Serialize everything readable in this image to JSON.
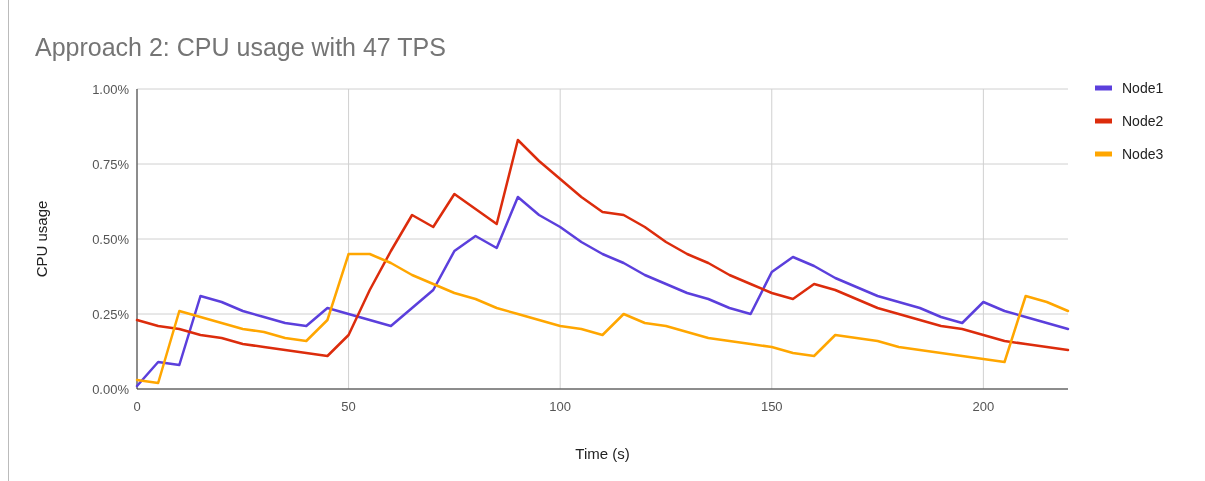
{
  "chart_data": {
    "type": "line",
    "title": "Approach 2: CPU usage with 47 TPS",
    "xlabel": "Time (s)",
    "ylabel": "CPU usage",
    "x": [
      0,
      5,
      10,
      15,
      20,
      25,
      30,
      35,
      40,
      45,
      50,
      55,
      60,
      65,
      70,
      75,
      80,
      85,
      90,
      95,
      100,
      105,
      110,
      115,
      120,
      125,
      130,
      135,
      140,
      145,
      150,
      155,
      160,
      165,
      170,
      175,
      180,
      185,
      190,
      195,
      200,
      205,
      210,
      215,
      220
    ],
    "series": [
      {
        "name": "Node1",
        "color": "#5b3fdc",
        "values": [
          0.01,
          0.09,
          0.08,
          0.31,
          0.29,
          0.26,
          0.24,
          0.22,
          0.21,
          0.27,
          0.25,
          0.23,
          0.21,
          0.27,
          0.33,
          0.46,
          0.51,
          0.47,
          0.64,
          0.58,
          0.54,
          0.49,
          0.45,
          0.42,
          0.38,
          0.35,
          0.32,
          0.3,
          0.27,
          0.25,
          0.39,
          0.44,
          0.41,
          0.37,
          0.34,
          0.31,
          0.29,
          0.27,
          0.24,
          0.22,
          0.29,
          0.26,
          0.24,
          0.22,
          0.2
        ]
      },
      {
        "name": "Node2",
        "color": "#dc2c0c",
        "values": [
          0.23,
          0.21,
          0.2,
          0.18,
          0.17,
          0.15,
          0.14,
          0.13,
          0.12,
          0.11,
          0.18,
          0.33,
          0.46,
          0.58,
          0.54,
          0.65,
          0.6,
          0.55,
          0.83,
          0.76,
          0.7,
          0.64,
          0.59,
          0.58,
          0.54,
          0.49,
          0.45,
          0.42,
          0.38,
          0.35,
          0.32,
          0.3,
          0.35,
          0.33,
          0.3,
          0.27,
          0.25,
          0.23,
          0.21,
          0.2,
          0.18,
          0.16,
          0.15,
          0.14,
          0.13
        ]
      },
      {
        "name": "Node3",
        "color": "#ffa600",
        "values": [
          0.03,
          0.02,
          0.26,
          0.24,
          0.22,
          0.2,
          0.19,
          0.17,
          0.16,
          0.23,
          0.45,
          0.45,
          0.42,
          0.38,
          0.35,
          0.32,
          0.3,
          0.27,
          0.25,
          0.23,
          0.21,
          0.2,
          0.18,
          0.25,
          0.22,
          0.21,
          0.19,
          0.17,
          0.16,
          0.15,
          0.14,
          0.12,
          0.11,
          0.18,
          0.17,
          0.16,
          0.14,
          0.13,
          0.12,
          0.11,
          0.1,
          0.09,
          0.31,
          0.29,
          0.26
        ]
      }
    ],
    "xlim": [
      0,
      220
    ],
    "xticks": [
      0,
      50,
      100,
      150,
      200
    ],
    "ylim": [
      0,
      1
    ],
    "yticks": [
      {
        "value": 0,
        "label": "0.00%"
      },
      {
        "value": 0.25,
        "label": "0.25%"
      },
      {
        "value": 0.5,
        "label": "0.50%"
      },
      {
        "value": 0.75,
        "label": "0.75%"
      },
      {
        "value": 1,
        "label": "1.00%"
      }
    ],
    "grid": true,
    "legend": "right",
    "line_style": "solid",
    "marker": "none"
  }
}
